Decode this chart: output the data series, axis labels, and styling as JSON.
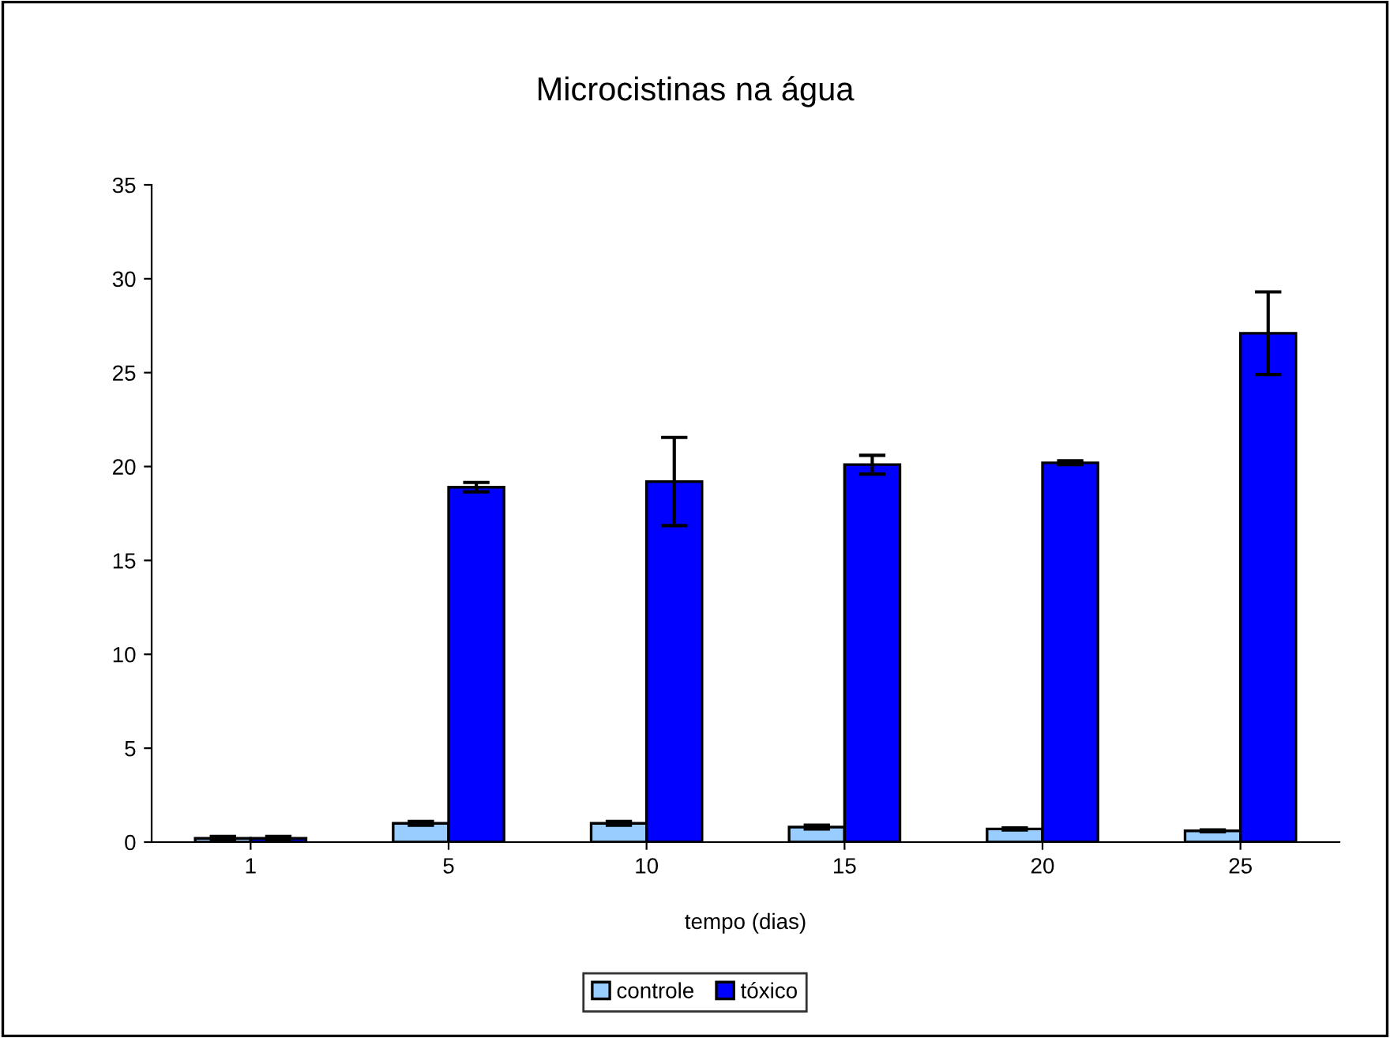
{
  "chart_data": {
    "type": "bar",
    "title": "Microcistinas na água",
    "xlabel": "tempo (dias)",
    "categories": [
      "1",
      "5",
      "10",
      "15",
      "20",
      "25"
    ],
    "series": [
      {
        "name": "controle",
        "color": "#99ccff",
        "values": [
          0.2,
          1.0,
          1.0,
          0.8,
          0.7,
          0.6
        ],
        "errors": [
          0.1,
          0.1,
          0.1,
          0.1,
          0.05,
          0.05
        ]
      },
      {
        "name": "tóxico",
        "color": "#0000ff",
        "values": [
          0.2,
          18.9,
          19.2,
          20.1,
          20.2,
          27.1
        ],
        "errors": [
          0.1,
          0.25,
          2.35,
          0.5,
          0.1,
          2.2
        ]
      }
    ],
    "ylim": [
      0,
      35
    ],
    "yticks": [
      0,
      5,
      10,
      15,
      20,
      25,
      30,
      35
    ],
    "grid": false,
    "legend": "bottom"
  }
}
